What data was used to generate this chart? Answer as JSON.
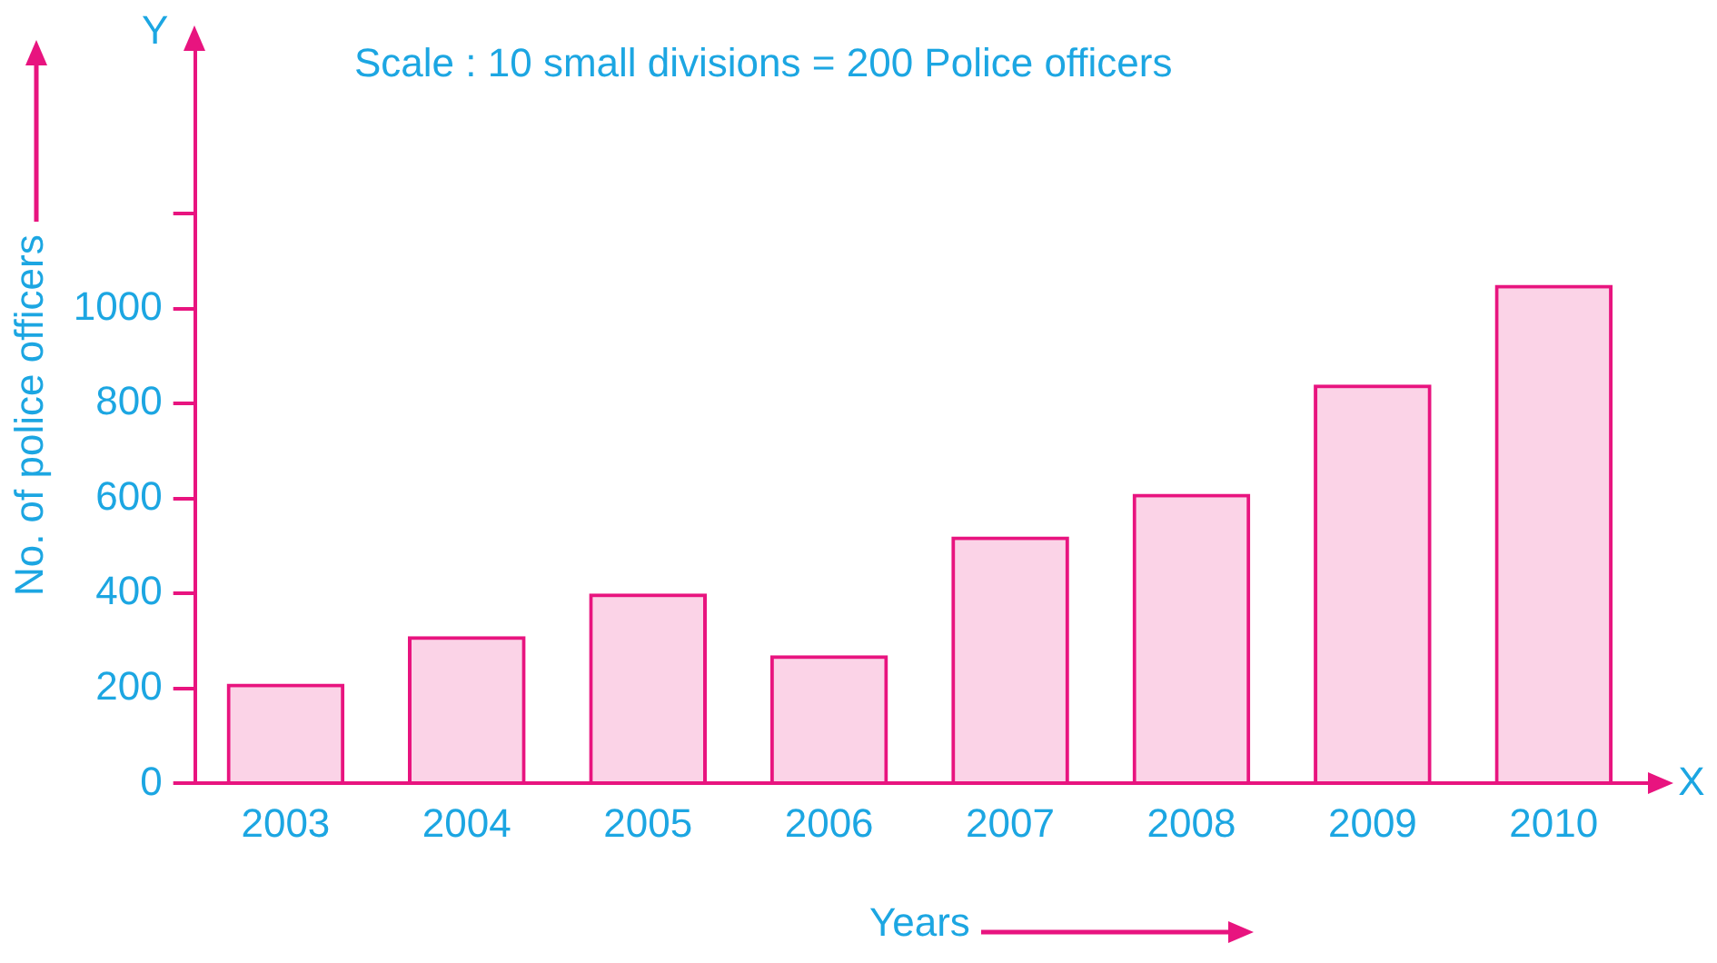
{
  "chart_data": {
    "type": "bar",
    "title": "Scale : 10 small divisions = 200 Police officers",
    "xlabel": "Years",
    "ylabel": "No. of police officers",
    "categories": [
      "2003",
      "2004",
      "2005",
      "2006",
      "2007",
      "2008",
      "2009",
      "2010"
    ],
    "values": [
      210,
      310,
      400,
      270,
      520,
      610,
      840,
      1050
    ],
    "color": "#e8147f",
    "ylim": [
      0,
      1550
    ],
    "yticks": [
      0,
      200,
      400,
      600,
      800,
      1000,
      {
        "value": 1200,
        "label": null
      }
    ],
    "grid": false,
    "legend": false,
    "annotations": [
      "Y",
      "X"
    ]
  }
}
